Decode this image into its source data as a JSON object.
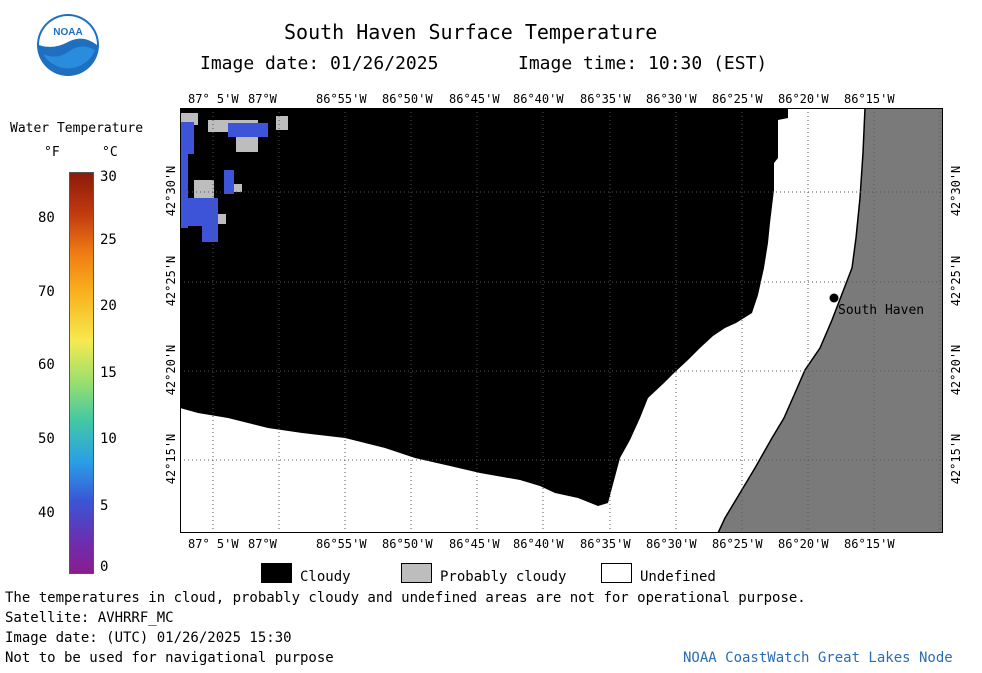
{
  "header": {
    "title": "South Haven Surface Temperature",
    "image_date": "Image date: 01/26/2025",
    "image_time": "Image time: 10:30 (EST)"
  },
  "logo": {
    "text": "NOAA",
    "color": "#1f6fc0"
  },
  "scale": {
    "title": "Water Temperature",
    "unit_f": "°F",
    "unit_c": "°C",
    "f_ticks": [
      "80",
      "70",
      "60",
      "50",
      "40"
    ],
    "c_ticks": [
      "30",
      "25",
      "20",
      "15",
      "10",
      "5",
      "0"
    ]
  },
  "map": {
    "top_lon_labels": [
      "87° 5'W",
      "87°W",
      "86°55'W",
      "86°50'W",
      "86°45'W",
      "86°40'W",
      "86°35'W",
      "86°30'W",
      "86°25'W",
      "86°20'W",
      "86°15'W"
    ],
    "bottom_lon_labels": [
      "87° 5'W",
      "87°W",
      "86°55'W",
      "86°50'W",
      "86°45'W",
      "86°40'W",
      "86°35'W",
      "86°30'W",
      "86°25'W",
      "86°20'W",
      "86°15'W"
    ],
    "lat_labels": [
      "42°30'N",
      "42°25'N",
      "42°20'N",
      "42°15'N"
    ],
    "city": "South Haven",
    "colors": {
      "cloudy": "#000000",
      "probably_cloudy": "#bdbdbd",
      "undefined": "#ffffff",
      "land": "#7a7a7a",
      "water_cold": "#3e54d8"
    }
  },
  "legend": {
    "cloudy": "Cloudy",
    "probably_cloudy": "Probably cloudy",
    "undefined": "Undefined"
  },
  "footer": {
    "note": "The temperatures in cloud, probably cloudy and undefined areas are not for operational purpose.",
    "satellite": "Satellite: AVHRRF_MC",
    "utc_date": "Image date: (UTC) 01/26/2025  15:30",
    "nav": "Not to be used for navigational purpose",
    "credit": "NOAA CoastWatch Great Lakes Node"
  }
}
